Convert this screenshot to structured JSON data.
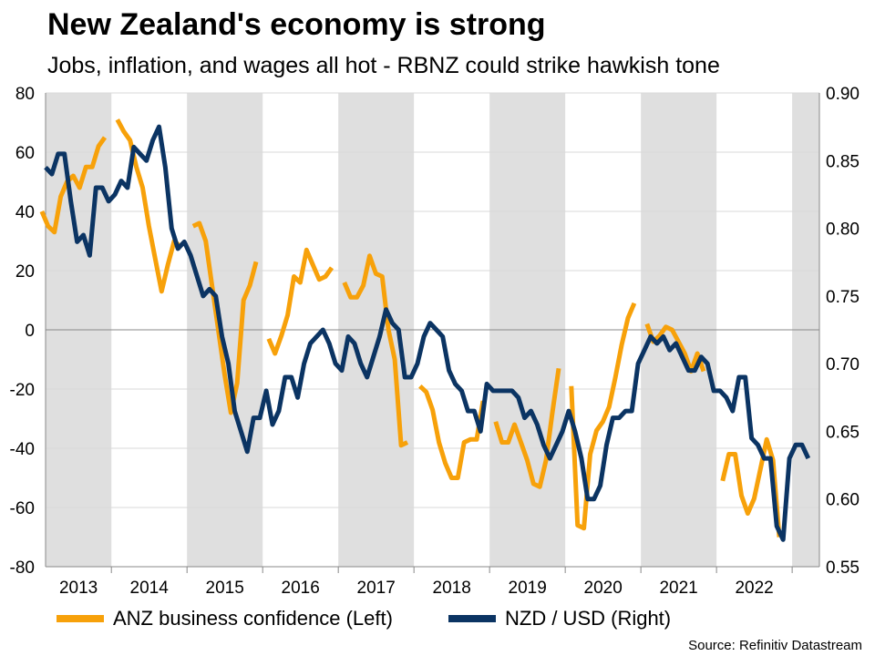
{
  "chart_data": {
    "type": "line",
    "title": "New Zealand's economy is strong",
    "subtitle": "Jobs, inflation, and wages all hot - RBNZ could strike hawkish tone",
    "source": "Source: Refinitiv Datastream",
    "x_range": [
      2013.13,
      2023.36
    ],
    "x_ticks": [
      "2013",
      "2014",
      "2015",
      "2016",
      "2017",
      "2018",
      "2019",
      "2020",
      "2021",
      "2022"
    ],
    "left_axis": {
      "min": -80,
      "max": 80,
      "ticks": [
        "80",
        "60",
        "40",
        "20",
        "0",
        "-20",
        "-40",
        "-60",
        "-80"
      ]
    },
    "right_axis": {
      "min": 0.55,
      "max": 0.9,
      "ticks": [
        "0.90",
        "0.85",
        "0.80",
        "0.75",
        "0.70",
        "0.65",
        "0.60",
        "0.55"
      ]
    },
    "shaded_years": [
      2013,
      2015,
      2017,
      2019,
      2021,
      2023
    ],
    "series": [
      {
        "name": "ANZ business confidence (Left)",
        "axis": "left",
        "color": "#F7A10A",
        "start": 2013.08,
        "monthly": [
          40,
          35,
          33,
          45,
          50,
          52,
          48,
          55,
          55,
          62,
          65,
          null,
          71,
          67,
          64,
          55,
          48,
          35,
          24,
          13,
          22,
          30,
          28,
          null,
          35,
          36,
          30,
          15,
          0,
          -15,
          -28,
          -18,
          10,
          15,
          23,
          null,
          -3,
          -8,
          -2,
          5,
          18,
          16,
          27,
          22,
          17,
          18,
          21,
          null,
          16,
          11,
          11,
          15,
          25,
          19,
          18,
          0,
          -10,
          -39,
          -38,
          null,
          -19,
          -21,
          -27,
          -38,
          -45,
          -50,
          -50,
          -38,
          -37,
          -37,
          -24,
          null,
          -31,
          -38,
          -38,
          -32,
          -38,
          -44,
          -52,
          -53,
          -44,
          -28,
          -13,
          null,
          -19,
          -66,
          -67,
          -42,
          -34,
          -31,
          -26,
          -16,
          -5,
          4,
          9,
          null,
          2,
          -4,
          -2,
          1,
          0,
          -4,
          -8,
          -14,
          -8,
          -14,
          null,
          null,
          -51,
          -42,
          -42,
          -56,
          -62,
          -57,
          -47,
          -37,
          -44,
          -70,
          null,
          null,
          -52
        ]
      },
      {
        "name": "NZD / USD (Right)",
        "axis": "right",
        "color": "#0B3463",
        "start": 2013.13,
        "monthly": [
          0.845,
          0.84,
          0.855,
          0.855,
          0.82,
          0.79,
          0.795,
          0.78,
          0.83,
          0.83,
          0.82,
          0.825,
          0.835,
          0.83,
          0.86,
          0.855,
          0.85,
          0.865,
          0.875,
          0.845,
          0.8,
          0.785,
          0.79,
          0.78,
          0.765,
          0.75,
          0.755,
          0.75,
          0.72,
          0.7,
          0.665,
          0.65,
          0.635,
          0.66,
          0.66,
          0.68,
          0.655,
          0.665,
          0.69,
          0.69,
          0.675,
          0.7,
          0.715,
          0.72,
          0.725,
          0.715,
          0.7,
          0.695,
          0.72,
          0.715,
          0.7,
          0.69,
          0.705,
          0.72,
          0.74,
          0.73,
          0.725,
          0.69,
          0.69,
          0.7,
          0.72,
          0.73,
          0.725,
          0.72,
          0.695,
          0.685,
          0.68,
          0.665,
          0.665,
          0.65,
          0.685,
          0.68,
          0.68,
          0.68,
          0.68,
          0.675,
          0.66,
          0.665,
          0.655,
          0.64,
          0.63,
          0.64,
          0.65,
          0.665,
          0.65,
          0.63,
          0.6,
          0.6,
          0.61,
          0.64,
          0.66,
          0.66,
          0.665,
          0.665,
          0.7,
          0.71,
          0.72,
          0.715,
          0.72,
          0.71,
          0.715,
          0.705,
          0.695,
          0.695,
          0.705,
          0.7,
          0.68,
          0.68,
          0.675,
          0.665,
          0.69,
          0.69,
          0.645,
          0.64,
          0.63,
          0.63,
          0.58,
          0.57,
          0.63,
          0.64,
          0.64,
          0.63
        ]
      }
    ]
  }
}
